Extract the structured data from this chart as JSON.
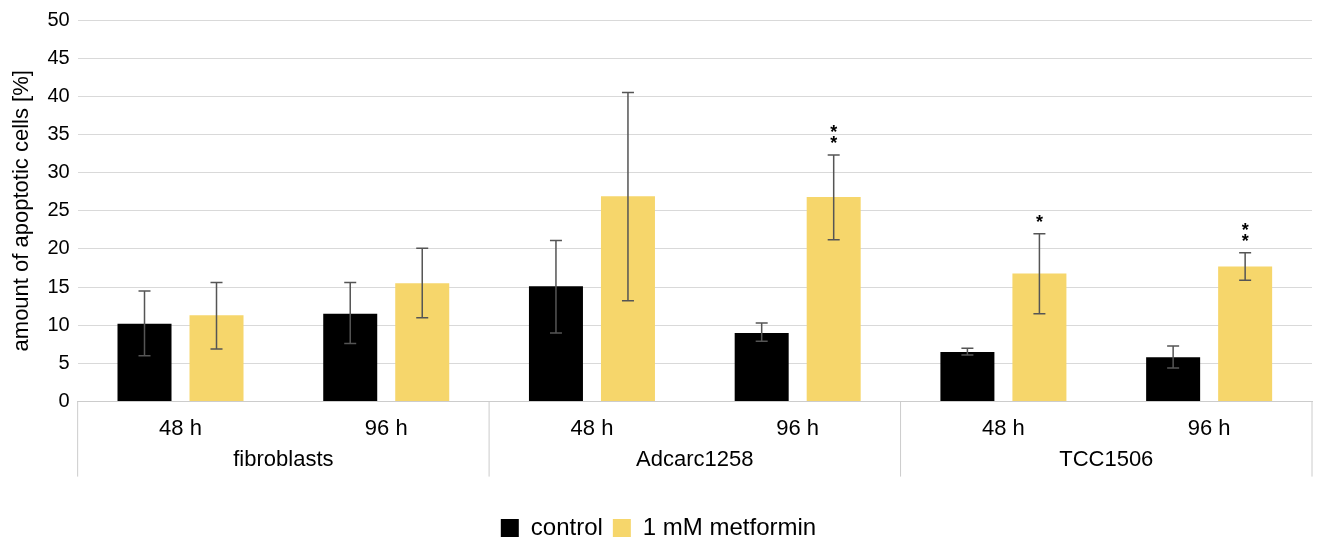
{
  "chart_data": {
    "type": "bar",
    "ylabel": "amount of apoptotic cells [%]",
    "categories": [
      "48 h",
      "96 h",
      "48 h",
      "96 h",
      "48 h",
      "96 h"
    ],
    "series": [
      {
        "name": "control",
        "color": "#000000",
        "values": [
          10.2,
          11.5,
          15.1,
          9.0,
          6.5,
          5.8
        ],
        "errors": [
          [
            6.0,
            14.5
          ],
          [
            7.6,
            15.6
          ],
          [
            9.0,
            21.1
          ],
          [
            7.9,
            10.3
          ],
          [
            6.1,
            7.0
          ],
          [
            4.4,
            7.3
          ]
        ]
      },
      {
        "name": "1 mM metformin",
        "color": "#f6d66b",
        "values": [
          11.3,
          15.5,
          26.9,
          26.8,
          16.8,
          17.7
        ],
        "errors": [
          [
            6.9,
            15.6
          ],
          [
            11.0,
            20.1
          ],
          [
            13.2,
            40.5
          ],
          [
            21.2,
            32.3
          ],
          [
            11.5,
            22.0
          ],
          [
            15.9,
            19.5
          ]
        ],
        "value_labels": [
          null,
          null,
          null,
          "**",
          "*",
          "**"
        ]
      }
    ],
    "annotations": [
      "fibroblasts",
      "Adcarc1258",
      "TCC1506"
    ],
    "ylim": [
      0,
      50
    ],
    "yticks": [
      0,
      5,
      10,
      15,
      20,
      25,
      30,
      35,
      40,
      45,
      50
    ],
    "grid": "y",
    "legend": "bottom"
  }
}
